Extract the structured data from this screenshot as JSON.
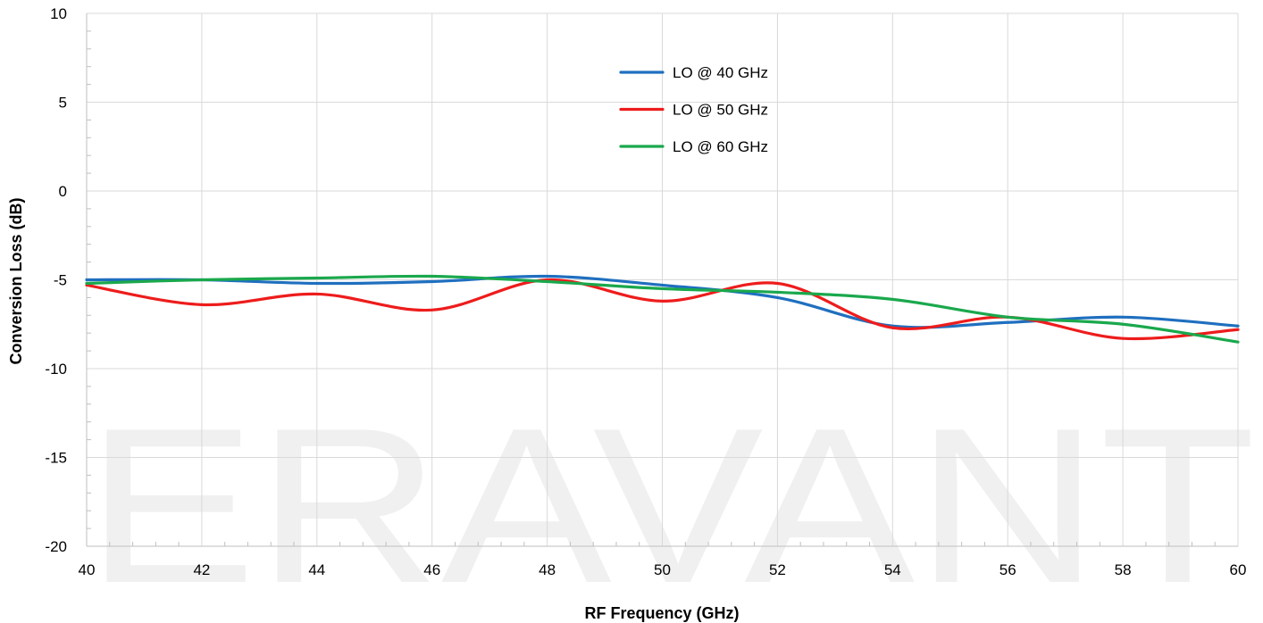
{
  "watermark": {
    "text": "ERAVANT"
  },
  "chart_data": {
    "type": "line",
    "xlabel": "RF Frequency (GHz)",
    "ylabel": "Conversion Loss (dB)",
    "xlim": [
      40,
      60
    ],
    "ylim": [
      -20,
      10
    ],
    "xticks": [
      40,
      42,
      44,
      46,
      48,
      50,
      52,
      54,
      56,
      58,
      60
    ],
    "yticks": [
      10,
      5,
      0,
      -5,
      -10,
      -15,
      -20
    ],
    "grid": true,
    "legend_position": "top-center",
    "series": [
      {
        "name": "LO @ 40 GHz",
        "color": "#1f6fbf",
        "x": [
          40,
          42,
          44,
          46,
          48,
          50,
          52,
          54,
          56,
          58,
          60
        ],
        "y": [
          -5.0,
          -5.0,
          -5.2,
          -5.1,
          -4.8,
          -5.3,
          -6.0,
          -7.6,
          -7.4,
          -7.1,
          -7.6
        ]
      },
      {
        "name": "LO @ 50 GHz",
        "color": "#ee1c1c",
        "x": [
          40,
          42,
          44,
          46,
          48,
          50,
          52,
          54,
          56,
          58,
          60
        ],
        "y": [
          -5.3,
          -6.4,
          -5.8,
          -6.7,
          -5.0,
          -6.2,
          -5.2,
          -7.7,
          -7.1,
          -8.3,
          -7.8
        ]
      },
      {
        "name": "LO @ 60 GHz",
        "color": "#1aa84c",
        "x": [
          40,
          42,
          44,
          46,
          48,
          50,
          52,
          54,
          56,
          58,
          60
        ],
        "y": [
          -5.2,
          -5.0,
          -4.9,
          -4.8,
          -5.1,
          -5.5,
          -5.7,
          -6.1,
          -7.1,
          -7.5,
          -8.5
        ]
      }
    ]
  }
}
